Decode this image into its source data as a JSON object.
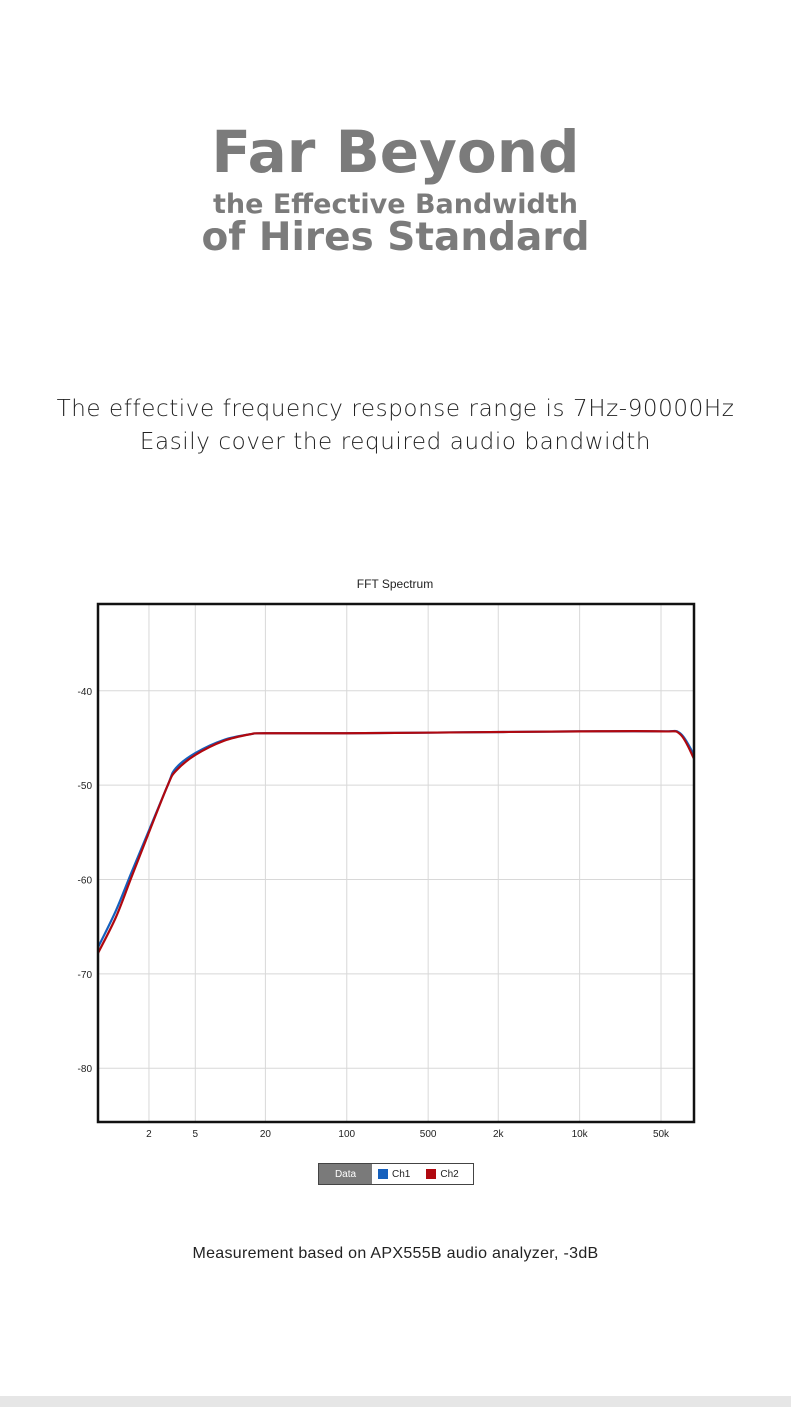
{
  "header": {
    "line1": "Far Beyond",
    "line2": "the Effective Bandwidth",
    "line3": "of Hires Standard"
  },
  "subtitle": {
    "line1": "The effective frequency response range is 7Hz-90000Hz",
    "line2": "Easily cover the required audio bandwidth"
  },
  "note": "Measurement based on APX555B audio analyzer, -3dB",
  "colors": {
    "ch1": "#1560bd",
    "ch2": "#b0080f",
    "grid": "#d8d8d8",
    "frame": "#111111",
    "text": "#7b7b7b"
  },
  "chart_data": {
    "type": "line",
    "title": "FFT Spectrum",
    "xlabel": "",
    "ylabel": "",
    "xscale": "log",
    "xlim": [
      0.73,
      96000
    ],
    "ylim": [
      -85.7,
      -30.8
    ],
    "xticks": [
      2,
      5,
      20,
      100,
      500,
      2000,
      10000,
      50000
    ],
    "xtick_labels": [
      "2",
      "5",
      "20",
      "100",
      "500",
      "2k",
      "10k",
      "50k"
    ],
    "yticks": [
      -40,
      -50,
      -60,
      -70,
      -80
    ],
    "ytick_labels": [
      "-40",
      "-50",
      "-60",
      "-70",
      "-80"
    ],
    "grid": true,
    "legend": {
      "title": "Data",
      "position": "bottom-center"
    },
    "series": [
      {
        "name": "Ch1",
        "color": "#1560bd",
        "x": [
          0.73,
          1.04,
          1.41,
          2,
          2.9,
          3.4,
          5,
          8.8,
          14.9,
          20,
          100,
          1000,
          10000,
          50000,
          73000,
          96000
        ],
        "y": [
          -67.2,
          -63.3,
          -59.3,
          -54.8,
          -50.0,
          -48.2,
          -46.6,
          -45.2,
          -44.6,
          -44.5,
          -44.5,
          -44.4,
          -44.3,
          -44.3,
          -44.5,
          -46.8
        ]
      },
      {
        "name": "Ch2",
        "color": "#b0080f",
        "x": [
          0.73,
          1.04,
          1.41,
          2,
          2.9,
          3.4,
          5,
          8.8,
          14.9,
          20,
          100,
          1000,
          10000,
          50000,
          73000,
          96000
        ],
        "y": [
          -67.8,
          -64.0,
          -59.8,
          -55.0,
          -50.0,
          -48.5,
          -46.8,
          -45.3,
          -44.6,
          -44.5,
          -44.5,
          -44.4,
          -44.3,
          -44.3,
          -44.6,
          -47.2
        ]
      }
    ]
  }
}
